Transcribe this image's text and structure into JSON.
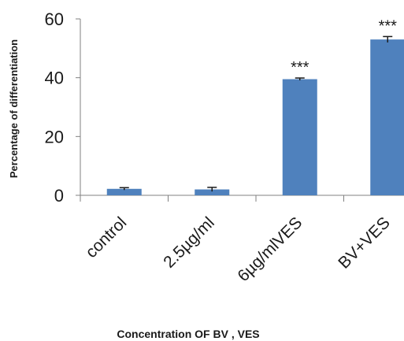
{
  "chart_data": {
    "type": "bar",
    "title": "",
    "xlabel": "Concentration OF BV , VES",
    "ylabel": "Percentage of differentiation",
    "categories": [
      "control",
      "2.5µg/ml",
      "6µg/mlVES",
      "BV+VES"
    ],
    "values": [
      2.2,
      2.0,
      39.5,
      53.0
    ],
    "errors": [
      0.4,
      0.7,
      0.4,
      1.0
    ],
    "annotations": [
      "",
      "",
      "***",
      "***"
    ],
    "yticks": [
      0,
      20,
      40,
      60
    ],
    "ylim": [
      0,
      60
    ],
    "grid": false,
    "legend": "none",
    "bar_color": "#4f81bd"
  }
}
